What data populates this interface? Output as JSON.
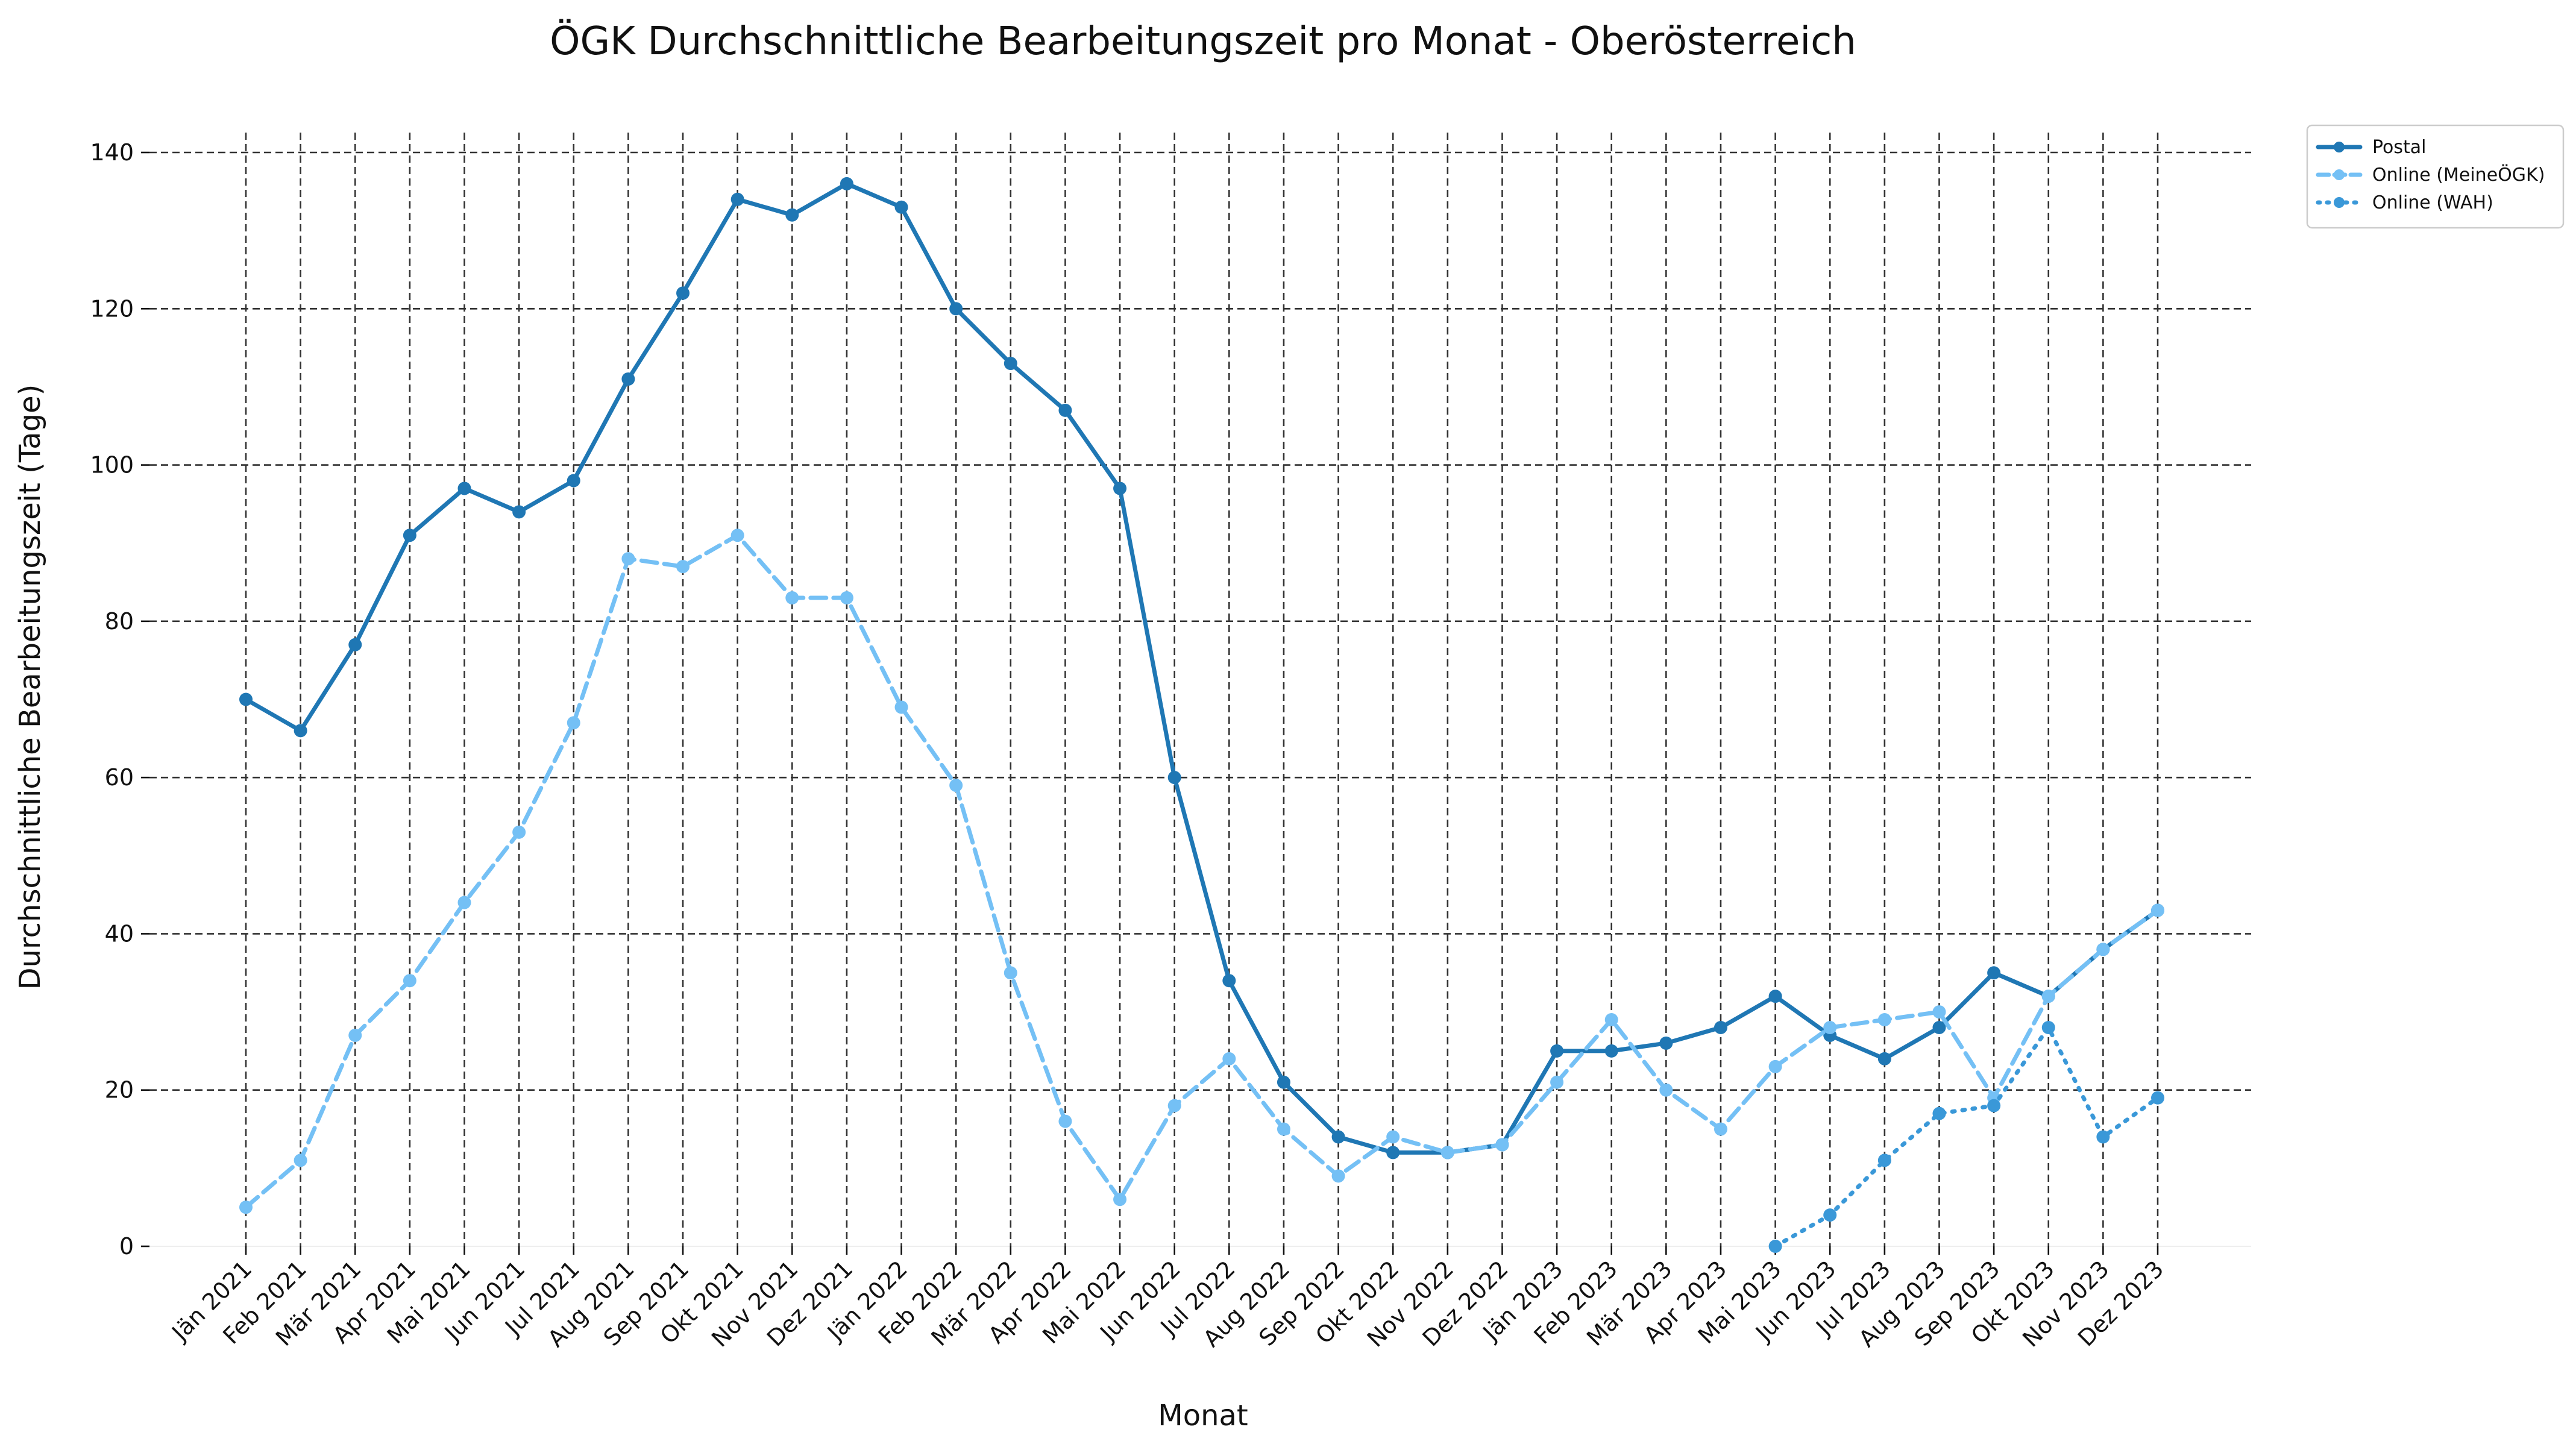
{
  "chart_data": {
    "type": "line",
    "title": "ÖGK Durchschnittliche Bearbeitungszeit pro Monat - Oberösterreich",
    "xlabel": "Monat",
    "ylabel": "Durchschnittliche Bearbeitungszeit (Tage)",
    "ylim": [
      0,
      140
    ],
    "yticks": [
      0,
      20,
      40,
      60,
      80,
      100,
      120,
      140
    ],
    "grid": true,
    "legend_position": "outside top-right",
    "categories": [
      "Jän 2021",
      "Feb 2021",
      "Mär 2021",
      "Apr 2021",
      "Mai 2021",
      "Jun 2021",
      "Jul 2021",
      "Aug 2021",
      "Sep 2021",
      "Okt 2021",
      "Nov 2021",
      "Dez 2021",
      "Jän 2022",
      "Feb 2022",
      "Mär 2022",
      "Apr 2022",
      "Mai 2022",
      "Jun 2022",
      "Jul 2022",
      "Aug 2022",
      "Sep 2022",
      "Okt 2022",
      "Nov 2022",
      "Dez 2022",
      "Jän 2023",
      "Feb 2023",
      "Mär 2023",
      "Apr 2023",
      "Mai 2023",
      "Jun 2023",
      "Jul 2023",
      "Aug 2023",
      "Sep 2023",
      "Okt 2023",
      "Nov 2023",
      "Dez 2023"
    ],
    "series": [
      {
        "name": "Postal",
        "color": "#1f77b4",
        "line_style": "solid",
        "values": [
          70,
          66,
          77,
          91,
          97,
          94,
          98,
          111,
          122,
          134,
          132,
          136,
          133,
          120,
          113,
          107,
          97,
          60,
          34,
          21,
          14,
          12,
          12,
          13,
          25,
          25,
          26,
          28,
          32,
          27,
          24,
          28,
          35,
          32,
          38,
          43
        ]
      },
      {
        "name": "Online (MeineÖGK)",
        "color": "#74c0f5",
        "line_style": "dashed",
        "values": [
          5,
          11,
          27,
          34,
          44,
          53,
          67,
          88,
          87,
          91,
          83,
          83,
          69,
          59,
          35,
          16,
          6,
          18,
          24,
          15,
          9,
          14,
          12,
          13,
          21,
          29,
          20,
          15,
          23,
          28,
          29,
          30,
          19,
          32,
          38,
          43
        ]
      },
      {
        "name": "Online (WAH)",
        "color": "#3a98d8",
        "line_style": "dotted",
        "values": [
          null,
          null,
          null,
          null,
          null,
          null,
          null,
          null,
          null,
          null,
          null,
          null,
          null,
          null,
          null,
          null,
          null,
          null,
          null,
          null,
          null,
          null,
          null,
          null,
          null,
          null,
          null,
          null,
          0,
          4,
          11,
          17,
          18,
          28,
          14,
          19
        ]
      }
    ]
  }
}
